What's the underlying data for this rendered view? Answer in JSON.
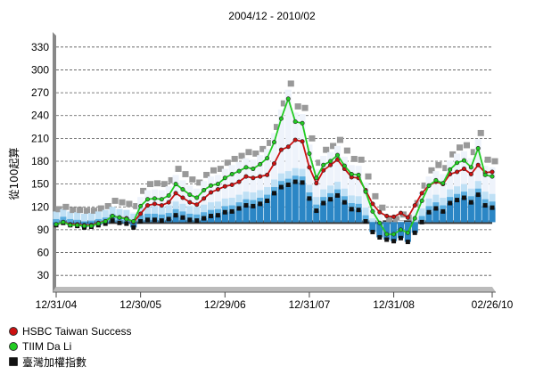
{
  "chart_data": {
    "type": "line",
    "title": "2004/12 - 2010/02",
    "ylabel": "從100起算",
    "ylim": [
      15,
      345
    ],
    "yticks": [
      30,
      60,
      90,
      120,
      150,
      180,
      210,
      240,
      270,
      300,
      330
    ],
    "xticks": [
      {
        "label": "12/31/04",
        "pos": 0
      },
      {
        "label": "12/30/05",
        "pos": 12
      },
      {
        "label": "12/29/06",
        "pos": 24
      },
      {
        "label": "12/31/07",
        "pos": 36
      },
      {
        "label": "12/31/08",
        "pos": 48
      },
      {
        "label": "02/26/10",
        "pos": 62
      }
    ],
    "grid": true,
    "legend_position": "bottom-left",
    "series": [
      {
        "name": "HSBC Taiwan Success",
        "color": "#cc1111",
        "type": "line",
        "values": [
          97,
          100,
          97,
          97,
          96,
          96,
          99,
          101,
          108,
          106,
          105,
          100,
          111,
          122,
          124,
          122,
          126,
          138,
          132,
          126,
          123,
          131,
          139,
          143,
          147,
          149,
          153,
          160,
          158,
          160,
          162,
          177,
          195,
          199,
          208,
          206,
          172,
          151,
          168,
          175,
          182,
          170,
          159,
          158,
          142,
          124,
          113,
          108,
          107,
          112,
          106,
          122,
          138,
          148,
          153,
          150,
          163,
          166,
          170,
          163,
          175,
          165,
          166
        ]
      },
      {
        "name": "TIIM Da Li",
        "color": "#22cc22",
        "type": "line",
        "values": [
          97,
          100,
          96,
          96,
          95,
          95,
          98,
          101,
          108,
          106,
          104,
          101,
          121,
          130,
          131,
          130,
          135,
          150,
          143,
          136,
          132,
          142,
          148,
          150,
          158,
          163,
          167,
          172,
          170,
          176,
          184,
          205,
          236,
          262,
          232,
          230,
          190,
          158,
          175,
          180,
          188,
          174,
          163,
          162,
          140,
          114,
          99,
          84,
          84,
          90,
          86,
          105,
          128,
          148,
          155,
          151,
          169,
          178,
          181,
          172,
          197,
          162,
          160
        ]
      },
      {
        "name": "臺灣加權指數",
        "color": "#111111",
        "type": "area",
        "values": [
          96,
          99,
          96,
          95,
          93,
          94,
          96,
          98,
          102,
          99,
          98,
          93,
          101,
          103,
          103,
          102,
          104,
          109,
          106,
          103,
          102,
          105,
          108,
          109,
          113,
          114,
          118,
          122,
          121,
          124,
          128,
          138,
          146,
          149,
          153,
          152,
          131,
          115,
          125,
          130,
          135,
          126,
          117,
          116,
          101,
          87,
          80,
          77,
          75,
          79,
          74,
          86,
          100,
          113,
          118,
          114,
          125,
          129,
          132,
          126,
          136,
          122,
          119
        ]
      }
    ]
  }
}
